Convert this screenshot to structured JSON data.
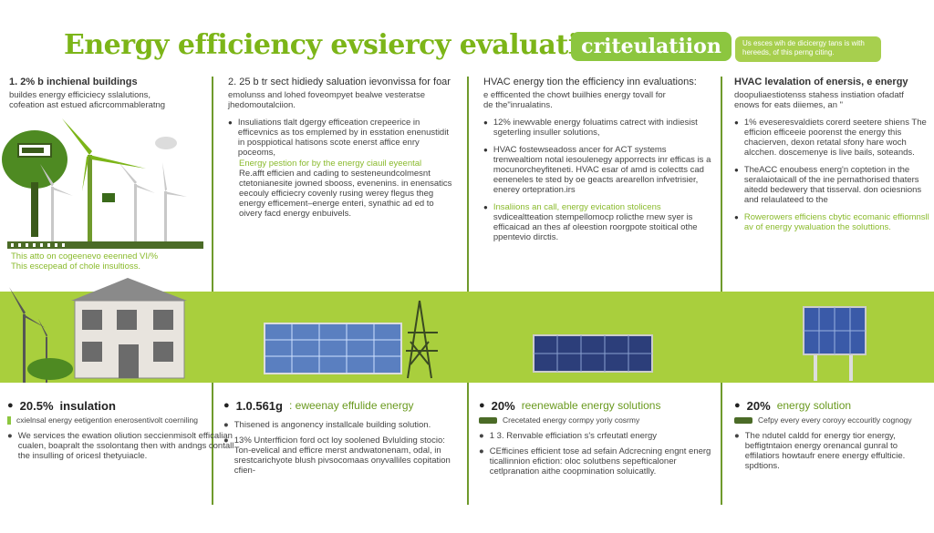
{
  "header": {
    "title": "Energy efficiency evsiercy evaluation",
    "pill": "criteulatiion",
    "note": "Us esces wih de dicicergy tans is with hereeds, of this perng citing."
  },
  "columns": [
    {
      "head": "1. 2% b inchienal buildings",
      "lines": [
        "buildes energy efficiciecy sslalutions,",
        "cofeation ast estued aficrcommableratng"
      ],
      "caption": [
        "This atto on cogeenevo eeenned VI/%",
        "This escepead of chole insultioss."
      ]
    },
    {
      "head": "2. 25 b tr sect hidiedy saluation ievonvissa for foar",
      "lines": [
        "emolunss and lohed foveompyet bealwe vesteratse",
        "jhedomoutalciion."
      ],
      "bullets": [
        {
          "text": "Insuliations tlalt dgergy efficeation crepeerice in efficevnics as tos emplemed by in esstation enenustidit in posppiotical hatisons scote enerst affice enry poceoms,"
        },
        {
          "text": "Energy pestion for by the energy ciauil eyeental",
          "green": true
        },
        {
          "text": "Re.afft efficien and cading to sesteneundcolmesnt ctetonianesite jowned sbooss, evenenins. in enensatics eecouly efficiecry covenly rusing werey flegus theg energy efficement–energe enteri, synathic ad ed to oivery facd energy enbuivels."
        }
      ]
    },
    {
      "head": "HVAC energy tion the efficiency inn evaluations:",
      "lines": [
        "e effficented the chowt builhies energy tovall for",
        "de the\"inrualatins."
      ],
      "bullets": [
        {
          "text": "12% inewvable energy foluatims catrect with indiesist sgeterling insuller solutions,"
        },
        {
          "text": "HVAC fostewseadoss ancer for ACT systems trenwealtiom notal iesoulenegy apporrects inr efficas is a mocunorcheyfiteneti. HVAC esar of amd is colectts cad eeneneles te sted by oe geacts arearellon infvetrisier, enerey ortepration.irs"
        },
        {
          "text": "Insaliions an call, energy evication stolicens",
          "green": true
        },
        {
          "text": "svdicealtteation stempellomocp rolicthe rnew syer is efficaicad an thes af oleestion roorgpote stoitical othe ppentevio dirctis."
        }
      ]
    },
    {
      "head": "HVAC levalation of enersis, e energy",
      "lines": [
        "doopuliaestiotenss stahess instiation ofadatf",
        "enows for eats diiemes, an \""
      ],
      "bullets": [
        {
          "text": "1% eveseresvaldiets corerd seetere shiens The efficion efficeeie poorenst the energy this chacierven, dexon retatal sfony hare woch alcchen. doscemenye is live bails, soteands."
        },
        {
          "text": "TheACC enoubess energ'n coptetion in the seralaiotaicall of the ine pernathorised thaters aitedd bedewery that tisserval. don ociesnions and relaulateed to the"
        },
        {
          "text": "Rowerowers efficiens cbytic ecomanic effiomnsll av of energy ywaluation the soluttions.",
          "green": true
        }
      ]
    }
  ],
  "bottom": [
    {
      "pct": "20.5%",
      "label": "insulation",
      "line1": "cxielnsal energy eetigention enerosentivolt coerniling",
      "bullet": "We services the ewation oliution seccienmisolt efficalian cualen, boapralt the ssolontang then with andngs contall the insulling of oricesl thetyuiacle."
    },
    {
      "pct": "1.0.561g",
      "label": ": eweenay effulide energy",
      "bullets": [
        "Thisened is angonency installcale building solution.",
        "13% Unterfficion ford oct loy soolened Bvlulding stocio: Ton-evelical and efficre merst andwatonenam, odal, in srestcarichyote blush pivsocomaas onyvalliles copitation cfien-"
      ]
    },
    {
      "pct": "20%",
      "label": "reenewable energy solutions",
      "line1": "Crecetated energy cormpy yoriy cosrmy",
      "bullets": [
        "1 3. Renvable efficiation s's crfeutatl energy",
        "CEfficines efficient tose ad sefain Adcrecning engnt energ ticallinnion efiction: oloc solutbens sepefticaloner cetlpranation aithe coopmination soluicatlly."
      ]
    },
    {
      "pct": "20%",
      "label": "energy solution",
      "line1": "Cefpy every every coroyy eccouritly cognogy",
      "bullet": "The ndutel caldd for energy tior energy, beffigtntaion energy orenancal gunral to effilatiors howtaufr enere energy effulticie. spdtions."
    }
  ],
  "colors": {
    "accent": "#8cc63f",
    "band": "#a9cf3d",
    "dark_green": "#4b6b27"
  }
}
